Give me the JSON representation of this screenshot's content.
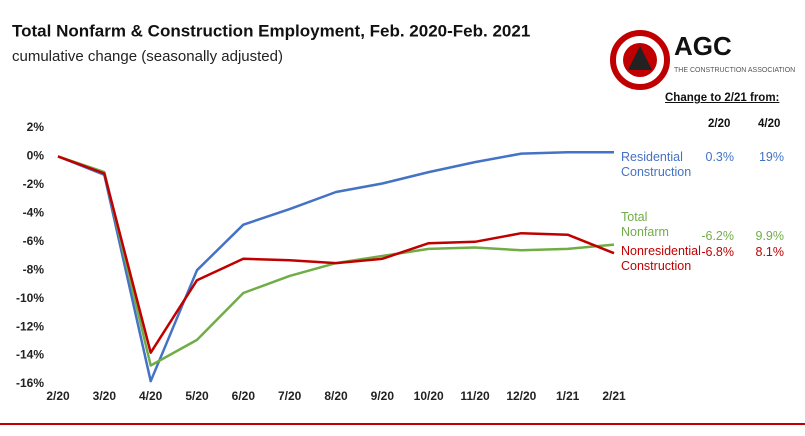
{
  "chart_data": {
    "type": "line",
    "title": "Total Nonfarm & Construction Employment, Feb. 2020-Feb. 2021",
    "subtitle": "cumulative change (seasonally adjusted)",
    "categories": [
      "2/20",
      "3/20",
      "4/20",
      "5/20",
      "6/20",
      "7/20",
      "8/20",
      "9/20",
      "10/20",
      "11/20",
      "12/20",
      "1/21",
      "2/21"
    ],
    "ylim": [
      -16,
      2
    ],
    "yticks": [
      {
        "value": 2,
        "label": "2%"
      },
      {
        "value": 0,
        "label": "0%"
      },
      {
        "value": -2,
        "label": "-2%"
      },
      {
        "value": -4,
        "label": "-4%"
      },
      {
        "value": -6,
        "label": "-6%"
      },
      {
        "value": -8,
        "label": "-8%"
      },
      {
        "value": -10,
        "label": "-10%"
      },
      {
        "value": -12,
        "label": "-12%"
      },
      {
        "value": -14,
        "label": "-14%"
      },
      {
        "value": -16,
        "label": "-16%"
      }
    ],
    "grid": false,
    "change_title": "Change to 2/21 from:",
    "change_columns": [
      "2/20",
      "4/20"
    ],
    "series": [
      {
        "name": "Residential Construction",
        "color": "#4472c4",
        "values": [
          0,
          -1.3,
          -15.8,
          -8.0,
          -4.8,
          -3.7,
          -2.5,
          -1.9,
          -1.1,
          -0.4,
          0.2,
          0.3,
          0.3
        ],
        "change_labels": [
          "0.3%",
          "19%"
        ]
      },
      {
        "name": "Total Nonfarm",
        "color": "#70ad47",
        "values": [
          0,
          -1.1,
          -14.7,
          -12.9,
          -9.6,
          -8.4,
          -7.5,
          -7.0,
          -6.5,
          -6.4,
          -6.6,
          -6.5,
          -6.2
        ],
        "change_labels": [
          "-6.2%",
          "9.9%"
        ]
      },
      {
        "name": "Nonresidential Construction",
        "color": "#c00000",
        "values": [
          0,
          -1.2,
          -13.8,
          -8.7,
          -7.2,
          -7.3,
          -7.5,
          -7.2,
          -6.1,
          -6.0,
          -5.4,
          -5.5,
          -6.8
        ],
        "change_labels": [
          "-6.8%",
          "8.1%"
        ]
      }
    ]
  },
  "logo": {
    "name": "AGC",
    "tagline": "THE CONSTRUCTION ASSOCIATION"
  }
}
